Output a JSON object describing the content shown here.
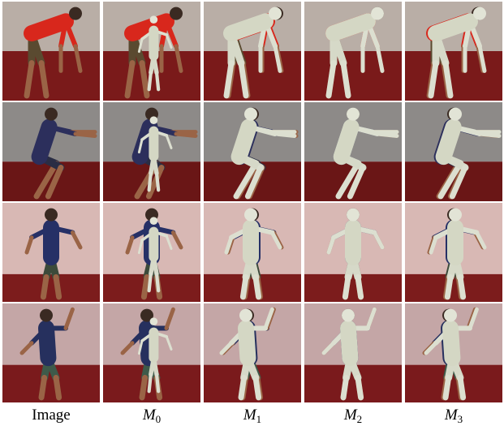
{
  "captions": [
    {
      "text": "Image"
    },
    {
      "base": "M",
      "sub": "0"
    },
    {
      "base": "M",
      "sub": "1"
    },
    {
      "base": "M",
      "sub": "2"
    },
    {
      "base": "M",
      "sub": "3"
    }
  ]
}
